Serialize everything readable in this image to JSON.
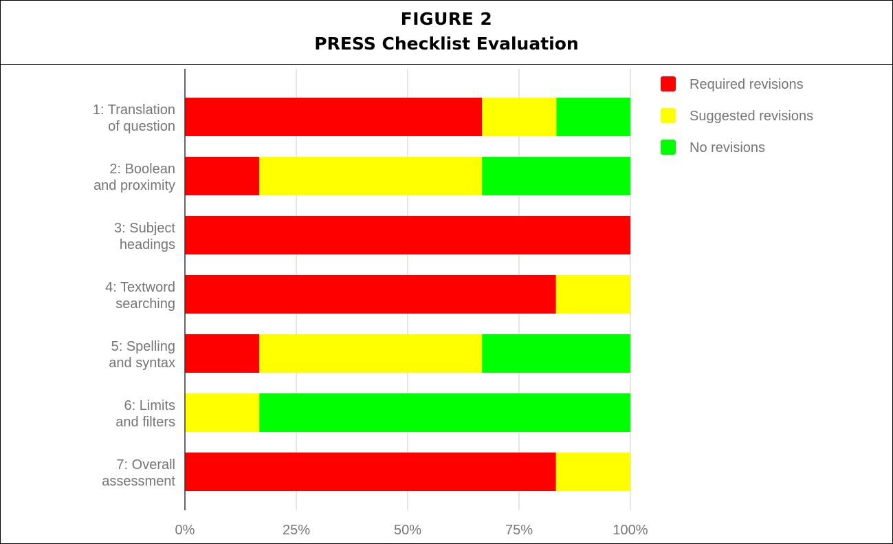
{
  "figure_label": "FIGURE 2",
  "chart_data": {
    "type": "bar",
    "orientation": "horizontal",
    "stacked": true,
    "title": "PRESS Checklist Evaluation",
    "categories": [
      "1: Translation of question",
      "2: Boolean and proximity",
      "3: Subject headings",
      "4: Textword searching",
      "5: Spelling and syntax",
      "6: Limits and filters",
      "7: Overall assessment"
    ],
    "series": [
      {
        "name": "Required revisions",
        "color": "#ff0000",
        "values": [
          66.7,
          16.7,
          100,
          83.3,
          16.7,
          0,
          83.3
        ]
      },
      {
        "name": "Suggested revisions",
        "color": "#ffff00",
        "values": [
          16.7,
          50,
          0,
          16.7,
          50,
          16.7,
          16.7
        ]
      },
      {
        "name": "No revisions",
        "color": "#00ff00",
        "values": [
          16.6,
          33.3,
          0,
          0,
          33.3,
          83.3,
          0
        ]
      }
    ],
    "xlim": [
      0,
      100
    ],
    "xticks": [
      "0%",
      "25%",
      "50%",
      "75%",
      "100%"
    ],
    "xtick_values": [
      0,
      25,
      50,
      75,
      100
    ],
    "grid": true,
    "legend_position": "top-right"
  }
}
